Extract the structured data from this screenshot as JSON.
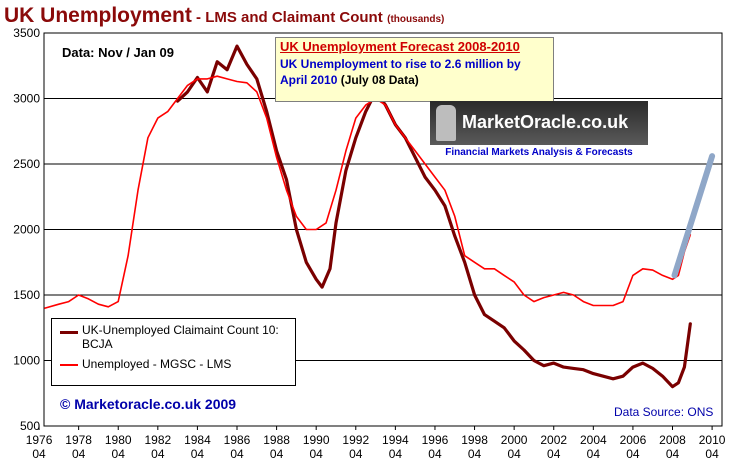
{
  "title": {
    "main": "UK Unemployment",
    "sub": " - LMS and Claimant Count",
    "units": "(thousands)"
  },
  "data_note": "Data: Nov / Jan 09",
  "forecast_box": {
    "title": "UK Unemployment Forecast 2008-2010",
    "line1": "UK Unemployment to rise to 2.6 million by",
    "line2_a": "April 2010",
    "line2_b": " (July 08 Data)"
  },
  "logo": {
    "name": "MarketOracle.co.uk",
    "tagline": "Financial Markets Analysis & Forecasts"
  },
  "copyright": "© Marketoracle.co.uk  2009",
  "source": "Data Source: ONS",
  "colors": {
    "claimant": "#7a0000",
    "lms": "#ff0000",
    "forecast": "#8fa7c8",
    "title": "#8b0a0a",
    "annotation_blue": "#0000aa"
  },
  "chart_data": {
    "type": "line",
    "ylim": [
      500,
      3500
    ],
    "yticks": [
      500,
      1000,
      1500,
      2000,
      2500,
      3000,
      3500
    ],
    "xlim": [
      1976.25,
      2010.5
    ],
    "xticks": [
      {
        "year": 1976,
        "top": "1976",
        "bottom": "04"
      },
      {
        "year": 1978,
        "top": "1978",
        "bottom": "04"
      },
      {
        "year": 1980,
        "top": "1980",
        "bottom": "04"
      },
      {
        "year": 1982,
        "top": "1982",
        "bottom": "04"
      },
      {
        "year": 1984,
        "top": "1984",
        "bottom": "04"
      },
      {
        "year": 1986,
        "top": "1986",
        "bottom": "04"
      },
      {
        "year": 1988,
        "top": "1988",
        "bottom": "04"
      },
      {
        "year": 1990,
        "top": "1990",
        "bottom": "04"
      },
      {
        "year": 1992,
        "top": "1992",
        "bottom": "04"
      },
      {
        "year": 1994,
        "top": "1994",
        "bottom": "04"
      },
      {
        "year": 1996,
        "top": "1996",
        "bottom": "04"
      },
      {
        "year": 1998,
        "top": "1998",
        "bottom": "04"
      },
      {
        "year": 2000,
        "top": "2000",
        "bottom": "04"
      },
      {
        "year": 2002,
        "top": "2002",
        "bottom": "04"
      },
      {
        "year": 2004,
        "top": "2004",
        "bottom": "04"
      },
      {
        "year": 2006,
        "top": "2006",
        "bottom": "04"
      },
      {
        "year": 2008,
        "top": "2008",
        "bottom": "04"
      },
      {
        "year": 2010,
        "top": "2010",
        "bottom": "04"
      }
    ],
    "grid": "horizontal",
    "legend_position": "bottom-left",
    "series": [
      {
        "name": "UK-Unemployed Claimaint Count 10: BCJA",
        "color": "#7a0000",
        "points": [
          [
            1983.0,
            2980
          ],
          [
            1983.5,
            3050
          ],
          [
            1984.0,
            3160
          ],
          [
            1984.5,
            3050
          ],
          [
            1985.0,
            3280
          ],
          [
            1985.5,
            3220
          ],
          [
            1986.0,
            3400
          ],
          [
            1986.5,
            3260
          ],
          [
            1987.0,
            3150
          ],
          [
            1987.5,
            2900
          ],
          [
            1988.0,
            2600
          ],
          [
            1988.5,
            2380
          ],
          [
            1989.0,
            2000
          ],
          [
            1989.5,
            1750
          ],
          [
            1990.0,
            1620
          ],
          [
            1990.3,
            1560
          ],
          [
            1990.7,
            1700
          ],
          [
            1991.0,
            2050
          ],
          [
            1991.5,
            2450
          ],
          [
            1992.0,
            2700
          ],
          [
            1992.5,
            2900
          ],
          [
            1993.0,
            3050
          ],
          [
            1993.5,
            2950
          ],
          [
            1994.0,
            2800
          ],
          [
            1994.5,
            2700
          ],
          [
            1995.0,
            2550
          ],
          [
            1995.5,
            2400
          ],
          [
            1996.0,
            2300
          ],
          [
            1996.5,
            2180
          ],
          [
            1997.0,
            1950
          ],
          [
            1997.5,
            1750
          ],
          [
            1998.0,
            1500
          ],
          [
            1998.5,
            1350
          ],
          [
            1999.0,
            1300
          ],
          [
            1999.5,
            1250
          ],
          [
            2000.0,
            1150
          ],
          [
            2000.5,
            1080
          ],
          [
            2001.0,
            1000
          ],
          [
            2001.5,
            960
          ],
          [
            2002.0,
            980
          ],
          [
            2002.5,
            950
          ],
          [
            2003.0,
            940
          ],
          [
            2003.5,
            930
          ],
          [
            2004.0,
            900
          ],
          [
            2004.5,
            880
          ],
          [
            2005.0,
            860
          ],
          [
            2005.5,
            880
          ],
          [
            2006.0,
            950
          ],
          [
            2006.5,
            980
          ],
          [
            2007.0,
            940
          ],
          [
            2007.5,
            880
          ],
          [
            2008.0,
            800
          ],
          [
            2008.3,
            830
          ],
          [
            2008.6,
            950
          ],
          [
            2008.9,
            1280
          ]
        ]
      },
      {
        "name": "Unemployed - MGSC - LMS",
        "color": "#ff0000",
        "points": [
          [
            1976.3,
            1400
          ],
          [
            1977.0,
            1430
          ],
          [
            1977.5,
            1450
          ],
          [
            1978.0,
            1500
          ],
          [
            1978.5,
            1470
          ],
          [
            1979.0,
            1430
          ],
          [
            1979.5,
            1410
          ],
          [
            1980.0,
            1450
          ],
          [
            1980.5,
            1800
          ],
          [
            1981.0,
            2300
          ],
          [
            1981.5,
            2700
          ],
          [
            1982.0,
            2850
          ],
          [
            1982.5,
            2900
          ],
          [
            1983.0,
            3000
          ],
          [
            1983.5,
            3100
          ],
          [
            1984.0,
            3150
          ],
          [
            1984.5,
            3150
          ],
          [
            1985.0,
            3170
          ],
          [
            1985.5,
            3150
          ],
          [
            1986.0,
            3130
          ],
          [
            1986.5,
            3120
          ],
          [
            1987.0,
            3050
          ],
          [
            1987.5,
            2850
          ],
          [
            1988.0,
            2550
          ],
          [
            1988.5,
            2300
          ],
          [
            1989.0,
            2100
          ],
          [
            1989.5,
            2000
          ],
          [
            1990.0,
            2000
          ],
          [
            1990.5,
            2050
          ],
          [
            1991.0,
            2300
          ],
          [
            1991.5,
            2600
          ],
          [
            1992.0,
            2850
          ],
          [
            1992.5,
            2950
          ],
          [
            1993.0,
            3000
          ],
          [
            1993.5,
            2950
          ],
          [
            1994.0,
            2800
          ],
          [
            1994.5,
            2700
          ],
          [
            1995.0,
            2600
          ],
          [
            1995.5,
            2500
          ],
          [
            1996.0,
            2400
          ],
          [
            1996.5,
            2300
          ],
          [
            1997.0,
            2100
          ],
          [
            1997.5,
            1800
          ],
          [
            1998.0,
            1750
          ],
          [
            1998.5,
            1700
          ],
          [
            1999.0,
            1700
          ],
          [
            1999.5,
            1650
          ],
          [
            2000.0,
            1600
          ],
          [
            2000.5,
            1500
          ],
          [
            2001.0,
            1450
          ],
          [
            2001.5,
            1480
          ],
          [
            2002.0,
            1500
          ],
          [
            2002.5,
            1520
          ],
          [
            2003.0,
            1500
          ],
          [
            2003.5,
            1450
          ],
          [
            2004.0,
            1420
          ],
          [
            2004.5,
            1420
          ],
          [
            2005.0,
            1420
          ],
          [
            2005.5,
            1450
          ],
          [
            2006.0,
            1650
          ],
          [
            2006.5,
            1700
          ],
          [
            2007.0,
            1690
          ],
          [
            2007.5,
            1650
          ],
          [
            2008.0,
            1620
          ],
          [
            2008.3,
            1650
          ],
          [
            2008.6,
            1830
          ],
          [
            2008.9,
            1960
          ]
        ]
      },
      {
        "name": "Forecast",
        "color": "#8fa7c8",
        "points": [
          [
            2008.1,
            1650
          ],
          [
            2010.0,
            2560
          ]
        ]
      }
    ]
  }
}
